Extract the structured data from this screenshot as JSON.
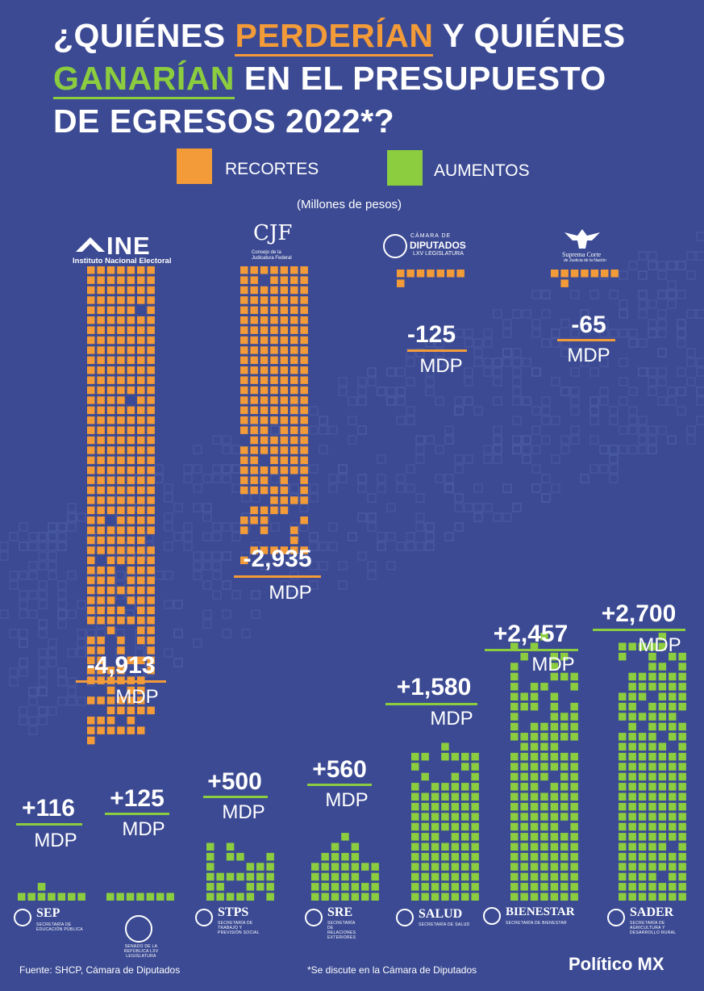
{
  "title": {
    "part1": "¿QUIÉNES ",
    "cut_word": "PERDERÍAN",
    "part2": " Y QUIÉNES",
    "up_word": "GANARÍAN",
    "part3": " EN EL PRESUPUESTO",
    "part4": "DE EGRESOS 2022*?"
  },
  "legend": {
    "cuts_label": "RECORTES",
    "increases_label": "AUMENTOS",
    "cuts_color": "#f29b38",
    "increases_color": "#8ccd3f"
  },
  "unit_note": "(Millones de pesos)",
  "footer": {
    "source": "Fuente: SHCP, Cámara de Diputados",
    "note": "*Se discute en la Cámara de Diputados",
    "brand": "Político MX"
  },
  "logos": {
    "ine_main": "INE",
    "ine_sub": "Instituto Nacional Electoral",
    "cjf_main": "CJF",
    "cjf_sub": "Consejo de la Judicatura Federal",
    "camara_top": "CÁMARA DE",
    "camara_main": "DIPUTADOS",
    "camara_sub": "LXV LEGISLATURA",
    "scjn_main": "Suprema Corte",
    "scjn_sub": "de Justicia de la Nación",
    "senado_text": "SENADO DE LA REPÚBLICA LXV LEGISLATURA"
  },
  "agencies": {
    "sep": {
      "name": "SEP",
      "sub": "SECRETARÍA DE EDUCACIÓN PÚBLICA"
    },
    "stps": {
      "name": "STPS",
      "sub": "SECRETARÍA DE TRABAJO Y PREVISIÓN SOCIAL"
    },
    "sre": {
      "name": "SRE",
      "sub": "SECRETARÍA DE RELACIONES EXTERIORES"
    },
    "salud": {
      "name": "SALUD",
      "sub": "SECRETARÍA DE SALUD"
    },
    "bienestar": {
      "name": "BIENESTAR",
      "sub": "SECRETARÍA DE BIENESTAR"
    },
    "sader": {
      "name": "SADER",
      "sub": "SECRETARÍA DE AGRICULTURA Y DESARROLLO RURAL"
    }
  },
  "chart_data": {
    "type": "bar",
    "unit": "MDP",
    "categories": [
      "INE",
      "CJF",
      "Cámara de Diputados",
      "Suprema Corte",
      "SEP",
      "Senado de la República",
      "STPS",
      "SRE",
      "SALUD",
      "BIENESTAR",
      "SADER"
    ],
    "values": [
      -4913,
      -2935,
      -125,
      -65,
      116,
      125,
      500,
      560,
      1580,
      2457,
      2700
    ],
    "labels": [
      "-4,913",
      "-2,935",
      "-125",
      "-65",
      "+116",
      "+125",
      "+500",
      "+560",
      "+1,580",
      "+2,457",
      "+2,700"
    ]
  }
}
